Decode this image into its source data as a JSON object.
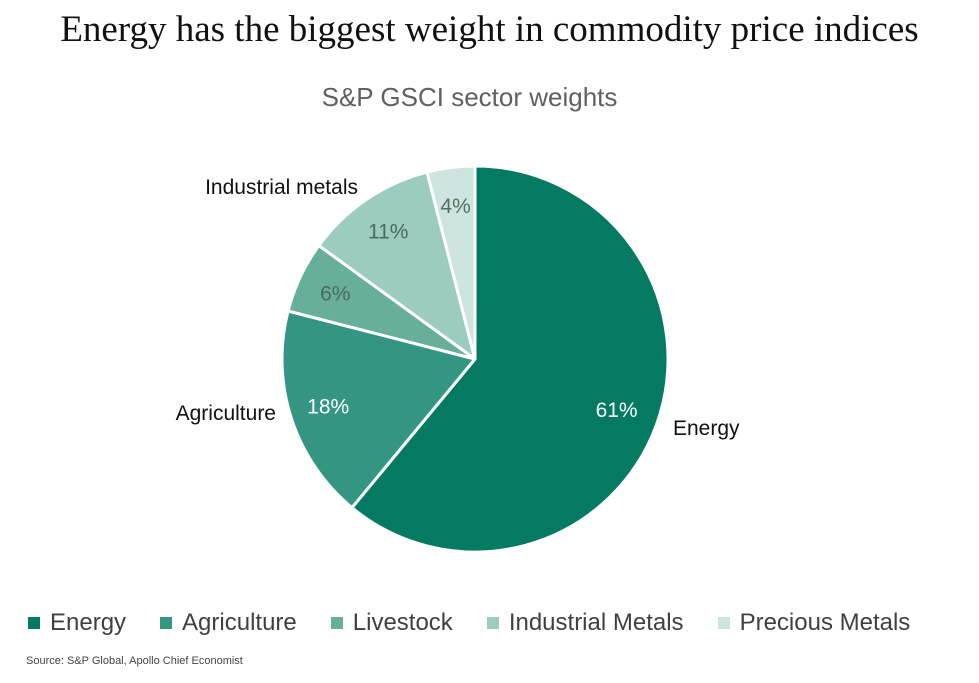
{
  "header": {
    "title": "Energy has the biggest weight in commodity price indices"
  },
  "footer": {
    "source": "Source: S&P Global, Apollo Chief Economist"
  },
  "chart_data": {
    "type": "pie",
    "title": "S&P GSCI sector weights",
    "slices": [
      {
        "name": "Energy",
        "value": 61,
        "label": "61%",
        "category_label": "Energy",
        "color": "#047A63",
        "label_color": "#ffffff"
      },
      {
        "name": "Agriculture",
        "value": 18,
        "label": "18%",
        "category_label": "Agriculture",
        "color": "#339582",
        "label_color": "#ffffff"
      },
      {
        "name": "Livestock",
        "value": 6,
        "label": "6%",
        "category_label": "",
        "color": "#67AF9A",
        "label_color": "#4a6a62"
      },
      {
        "name": "Industrial Metals",
        "value": 11,
        "label": "11%",
        "category_label": "Industrial metals",
        "color": "#9CCBBF",
        "label_color": "#4a6a62"
      },
      {
        "name": "Precious Metals",
        "value": 4,
        "label": "4%",
        "category_label": "",
        "color": "#CDE5DE",
        "label_color": "#5a6a66"
      }
    ],
    "legend": [
      "Energy",
      "Agriculture",
      "Livestock",
      "Industrial Metals",
      "Precious Metals"
    ],
    "legend_position": "bottom"
  }
}
